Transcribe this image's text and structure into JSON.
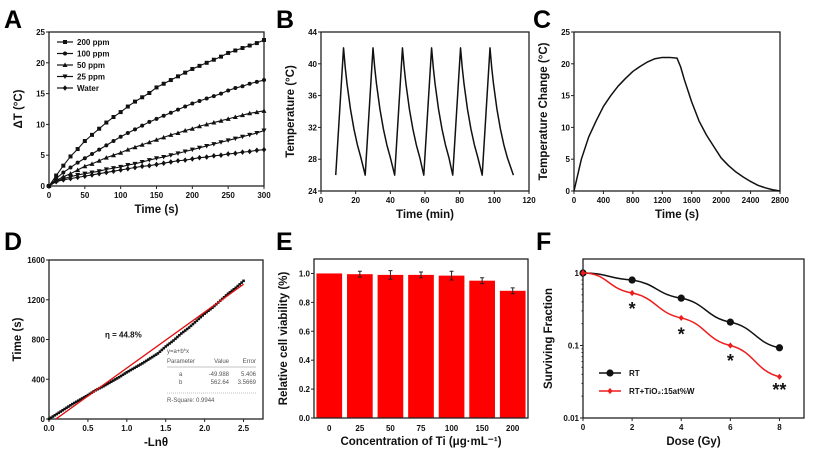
{
  "colors": {
    "black": "#111111",
    "red": "#ee1c1c",
    "bar": "#ff0000"
  },
  "chart_data": [
    {
      "panel": "A",
      "type": "line",
      "xlabel": "Time (s)",
      "ylabel": "ΔT (°C)",
      "xlim": [
        0,
        300
      ],
      "ylim": [
        0,
        25
      ],
      "xticks": [
        0,
        50,
        100,
        150,
        200,
        250,
        300
      ],
      "xticklabels": [
        "0",
        "50",
        "100",
        "150",
        "200",
        "250",
        "300"
      ],
      "yticks": [
        0,
        5,
        10,
        15,
        20,
        25
      ],
      "yticklabels": [
        "0",
        "5",
        "10",
        "15",
        "20",
        "25"
      ],
      "legend": "top-left",
      "x": [
        0,
        10,
        20,
        30,
        40,
        50,
        60,
        70,
        80,
        90,
        100,
        110,
        120,
        130,
        140,
        150,
        160,
        170,
        180,
        190,
        200,
        210,
        220,
        230,
        240,
        250,
        260,
        270,
        280,
        290,
        300
      ],
      "series": [
        {
          "name": "200 ppm",
          "marker": "square",
          "values": [
            0,
            1.7,
            3.3,
            4.8,
            6.0,
            7.3,
            8.3,
            9.3,
            10.3,
            11.2,
            12.0,
            12.9,
            13.7,
            14.4,
            15.1,
            16.0,
            16.6,
            17.2,
            17.8,
            18.4,
            19.0,
            19.5,
            20.0,
            20.5,
            21.0,
            21.6,
            22.0,
            22.4,
            22.8,
            23.2,
            23.7
          ]
        },
        {
          "name": "100 ppm",
          "marker": "circle",
          "values": [
            0,
            1.2,
            2.2,
            3.0,
            3.8,
            4.5,
            5.2,
            5.9,
            6.6,
            7.3,
            8.0,
            8.6,
            9.2,
            9.8,
            10.4,
            10.9,
            11.4,
            11.9,
            12.4,
            12.9,
            13.4,
            13.8,
            14.2,
            14.6,
            15.0,
            15.5,
            15.9,
            16.2,
            16.6,
            16.9,
            17.2
          ]
        },
        {
          "name": "50 ppm",
          "marker": "triangle-up",
          "values": [
            0,
            0.9,
            1.5,
            2.0,
            2.6,
            3.2,
            3.6,
            4.1,
            4.6,
            5.0,
            5.4,
            5.9,
            6.3,
            6.7,
            7.1,
            7.5,
            7.9,
            8.3,
            8.6,
            9.0,
            9.3,
            9.7,
            10.0,
            10.3,
            10.6,
            10.9,
            11.2,
            11.5,
            11.8,
            12.0,
            12.2
          ]
        },
        {
          "name": "25 ppm",
          "marker": "triangle-down",
          "values": [
            0,
            0.8,
            1.2,
            1.5,
            1.8,
            2.0,
            2.2,
            2.4,
            2.7,
            2.9,
            3.1,
            3.4,
            3.6,
            3.9,
            4.2,
            4.5,
            4.7,
            5.0,
            5.3,
            5.6,
            5.9,
            6.2,
            6.5,
            6.8,
            7.1,
            7.4,
            7.7,
            8.0,
            8.3,
            8.6,
            9.0
          ]
        },
        {
          "name": "Water",
          "marker": "diamond",
          "values": [
            0,
            0.7,
            1.0,
            1.2,
            1.4,
            1.6,
            1.8,
            2.0,
            2.2,
            2.4,
            2.6,
            2.8,
            3.0,
            3.2,
            3.3,
            3.5,
            3.7,
            3.9,
            4.1,
            4.2,
            4.4,
            4.6,
            4.7,
            4.9,
            5.0,
            5.2,
            5.3,
            5.5,
            5.6,
            5.8,
            5.9
          ]
        }
      ]
    },
    {
      "panel": "B",
      "type": "line",
      "xlabel": "Time (min)",
      "ylabel": "Temperature (°C)",
      "xlim": [
        0,
        120
      ],
      "ylim": [
        24,
        44
      ],
      "xticks": [
        0,
        20,
        40,
        60,
        80,
        100,
        120
      ],
      "xticklabels": [
        "0",
        "20",
        "40",
        "60",
        "80",
        "100",
        "120"
      ],
      "yticks": [
        24,
        28,
        32,
        36,
        40,
        44
      ],
      "yticklabels": [
        "24",
        "28",
        "32",
        "36",
        "40",
        "44"
      ],
      "series": [
        {
          "points": [
            [
              8.5,
              26
            ],
            [
              13,
              42
            ],
            [
              14,
              39.5
            ],
            [
              15,
              37.5
            ],
            [
              17,
              34.3
            ],
            [
              19,
              31.8
            ],
            [
              21,
              29.8
            ],
            [
              23,
              28.2
            ],
            [
              25.5,
              26
            ],
            [
              30,
              42
            ],
            [
              31,
              39.5
            ],
            [
              32,
              37.5
            ],
            [
              34,
              34.3
            ],
            [
              36,
              31.8
            ],
            [
              38,
              29.8
            ],
            [
              40,
              28.2
            ],
            [
              42.5,
              26
            ],
            [
              47,
              42
            ],
            [
              48,
              39.5
            ],
            [
              49,
              37.5
            ],
            [
              51,
              34.3
            ],
            [
              53,
              31.8
            ],
            [
              55,
              29.8
            ],
            [
              57,
              28.2
            ],
            [
              59.3,
              26
            ],
            [
              63.8,
              42
            ],
            [
              64.8,
              39.5
            ],
            [
              65.8,
              37.5
            ],
            [
              67.8,
              34.3
            ],
            [
              69.8,
              31.8
            ],
            [
              71.8,
              29.8
            ],
            [
              73.8,
              28.2
            ],
            [
              76,
              26
            ],
            [
              80.5,
              42
            ],
            [
              81.5,
              39.5
            ],
            [
              82.5,
              37.5
            ],
            [
              84.5,
              34.3
            ],
            [
              86.5,
              31.8
            ],
            [
              88.5,
              29.8
            ],
            [
              90.5,
              28.2
            ],
            [
              93,
              26
            ],
            [
              97.5,
              42
            ],
            [
              98.5,
              39.5
            ],
            [
              99.5,
              37.5
            ],
            [
              101.5,
              34.3
            ],
            [
              103.5,
              31.8
            ],
            [
              105.5,
              29.8
            ],
            [
              107.5,
              28.2
            ],
            [
              111,
              26
            ]
          ]
        }
      ]
    },
    {
      "panel": "C",
      "type": "line",
      "xlabel": "Time (s)",
      "ylabel": "Temperature Change (°C)",
      "xlim": [
        0,
        2800
      ],
      "ylim": [
        0,
        25
      ],
      "xticks": [
        0,
        400,
        800,
        1200,
        1600,
        2000,
        2400,
        2800
      ],
      "xticklabels": [
        "0",
        "400",
        "800",
        "1200",
        "1600",
        "2000",
        "2400",
        "2800"
      ],
      "yticks": [
        0,
        5,
        10,
        15,
        20,
        25
      ],
      "yticklabels": [
        "0",
        "5",
        "10",
        "15",
        "20",
        "25"
      ],
      "series": [
        {
          "points": [
            [
              0,
              0
            ],
            [
              100,
              5
            ],
            [
              200,
              8.5
            ],
            [
              300,
              11
            ],
            [
              400,
              13.3
            ],
            [
              500,
              15
            ],
            [
              600,
              16.5
            ],
            [
              700,
              17.7
            ],
            [
              800,
              18.8
            ],
            [
              900,
              19.6
            ],
            [
              1000,
              20.3
            ],
            [
              1100,
              20.8
            ],
            [
              1200,
              21
            ],
            [
              1300,
              21
            ],
            [
              1400,
              20.9
            ],
            [
              1450,
              19.5
            ],
            [
              1500,
              17.5
            ],
            [
              1600,
              14
            ],
            [
              1700,
              11
            ],
            [
              1800,
              8.8
            ],
            [
              1900,
              7
            ],
            [
              2000,
              5.2
            ],
            [
              2100,
              4
            ],
            [
              2200,
              3
            ],
            [
              2300,
              2.2
            ],
            [
              2400,
              1.5
            ],
            [
              2500,
              0.9
            ],
            [
              2600,
              0.5
            ],
            [
              2700,
              0.2
            ],
            [
              2800,
              0
            ]
          ]
        }
      ]
    },
    {
      "panel": "D",
      "type": "scatter",
      "xlabel": "-Lnθ",
      "ylabel": "Time (s)",
      "xlim": [
        0,
        2.75
      ],
      "ylim": [
        0,
        1600
      ],
      "xticks": [
        0,
        0.5,
        1,
        1.5,
        2,
        2.5
      ],
      "xticklabels": [
        "0.0",
        "0.5",
        "1.0",
        "1.5",
        "2.0",
        "2.5"
      ],
      "yticks": [
        0,
        400,
        800,
        1200,
        1600
      ],
      "yticklabels": [
        "0",
        "400",
        "800",
        "1200",
        "1600"
      ],
      "x": [
        0,
        0.1,
        0.2,
        0.3,
        0.4,
        0.5,
        0.6,
        0.7,
        0.8,
        0.9,
        1.0,
        1.1,
        1.2,
        1.3,
        1.4,
        1.5,
        1.6,
        1.7,
        1.8,
        1.9,
        2.0,
        2.1,
        2.2,
        2.3,
        2.4,
        2.5
      ],
      "values": [
        0,
        50,
        100,
        150,
        195,
        240,
        290,
        330,
        375,
        420,
        470,
        515,
        560,
        610,
        660,
        730,
        790,
        860,
        920,
        990,
        1060,
        1120,
        1190,
        1260,
        1320,
        1390
      ],
      "fit": {
        "a": -49.988,
        "b": 562.64,
        "x_range": [
          0.09,
          2.5
        ]
      },
      "annotation": "η = 44.8%",
      "fit_table": {
        "equation": "y=a+b*x",
        "headers": [
          "Parameter",
          "Value",
          "Error"
        ],
        "rows": [
          [
            "a",
            "-49.988",
            "5.406"
          ],
          [
            "b",
            "562.64",
            "3.5669"
          ]
        ],
        "r_square": "R-Square: 0.9944"
      }
    },
    {
      "panel": "E",
      "type": "bar",
      "xlabel": "Concentration of Ti (μg·mL⁻¹)",
      "ylabel": "Relative cell viability (%)",
      "categories": [
        "0",
        "25",
        "50",
        "75",
        "100",
        "150",
        "200"
      ],
      "values": [
        1.0,
        0.995,
        0.99,
        0.99,
        0.985,
        0.95,
        0.88
      ],
      "errors": [
        0,
        0.02,
        0.03,
        0.02,
        0.03,
        0.02,
        0.02
      ],
      "ylim": [
        0,
        1.1
      ],
      "yticks": [
        0,
        0.2,
        0.4,
        0.6,
        0.8,
        1.0
      ],
      "yticklabels": [
        "0.0",
        "0.2",
        "0.4",
        "0.6",
        "0.8",
        "1.0"
      ]
    },
    {
      "panel": "F",
      "type": "line",
      "yscale": "log",
      "xlabel": "Dose (Gy)",
      "ylabel": "Surviving Fraction",
      "xlim": [
        0,
        9
      ],
      "ylim": [
        0.01,
        1.56
      ],
      "xticks": [
        0,
        2,
        4,
        6,
        8
      ],
      "xticklabels": [
        "0",
        "2",
        "4",
        "6",
        "8"
      ],
      "yticks": [
        0.01,
        0.1,
        1
      ],
      "yticklabels": [
        "0.01",
        "0.1",
        "1"
      ],
      "legend": "bottom-left",
      "x": [
        0,
        2,
        4,
        6,
        8
      ],
      "series": [
        {
          "name": "RT",
          "color": "#111111",
          "marker": "circle",
          "values": [
            1,
            0.8,
            0.45,
            0.21,
            0.093
          ]
        },
        {
          "name": "RT+TiO₂:15at%W",
          "color": "#ee1c1c",
          "marker": "diamond",
          "values": [
            1,
            0.53,
            0.24,
            0.1,
            0.037
          ]
        }
      ],
      "significance": [
        {
          "x": 2,
          "label": "*"
        },
        {
          "x": 4,
          "label": "*"
        },
        {
          "x": 6,
          "label": "*"
        },
        {
          "x": 8,
          "label": "**"
        }
      ]
    }
  ]
}
